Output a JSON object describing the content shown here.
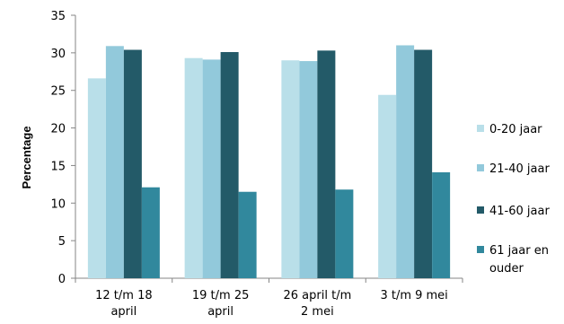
{
  "chart_data": {
    "type": "bar",
    "categories": [
      [
        "12 t/m 18",
        "april"
      ],
      [
        "19 t/m 25",
        "april"
      ],
      [
        "26 april t/m",
        "2 mei"
      ],
      [
        "3 t/m 9 mei"
      ]
    ],
    "series": [
      {
        "name": "0-20 jaar",
        "values": [
          26.6,
          29.3,
          29.0,
          24.4
        ],
        "color": "#b9dfe9"
      },
      {
        "name": "21-40 jaar",
        "values": [
          30.9,
          29.1,
          28.9,
          31.0
        ],
        "color": "#92c9db"
      },
      {
        "name": "41-60 jaar",
        "values": [
          30.4,
          30.1,
          30.3,
          30.4
        ],
        "color": "#235a68"
      },
      {
        "name": [
          "61 jaar en",
          "ouder"
        ],
        "values": [
          12.1,
          11.5,
          11.8,
          14.1
        ],
        "color": "#31889d"
      }
    ],
    "ylabel": "Percentage",
    "ylim": [
      0,
      35
    ],
    "yticks": [
      "0",
      "5",
      "10",
      "15",
      "20",
      "25",
      "30",
      "35"
    ],
    "grid": false,
    "legend_position": "right"
  }
}
